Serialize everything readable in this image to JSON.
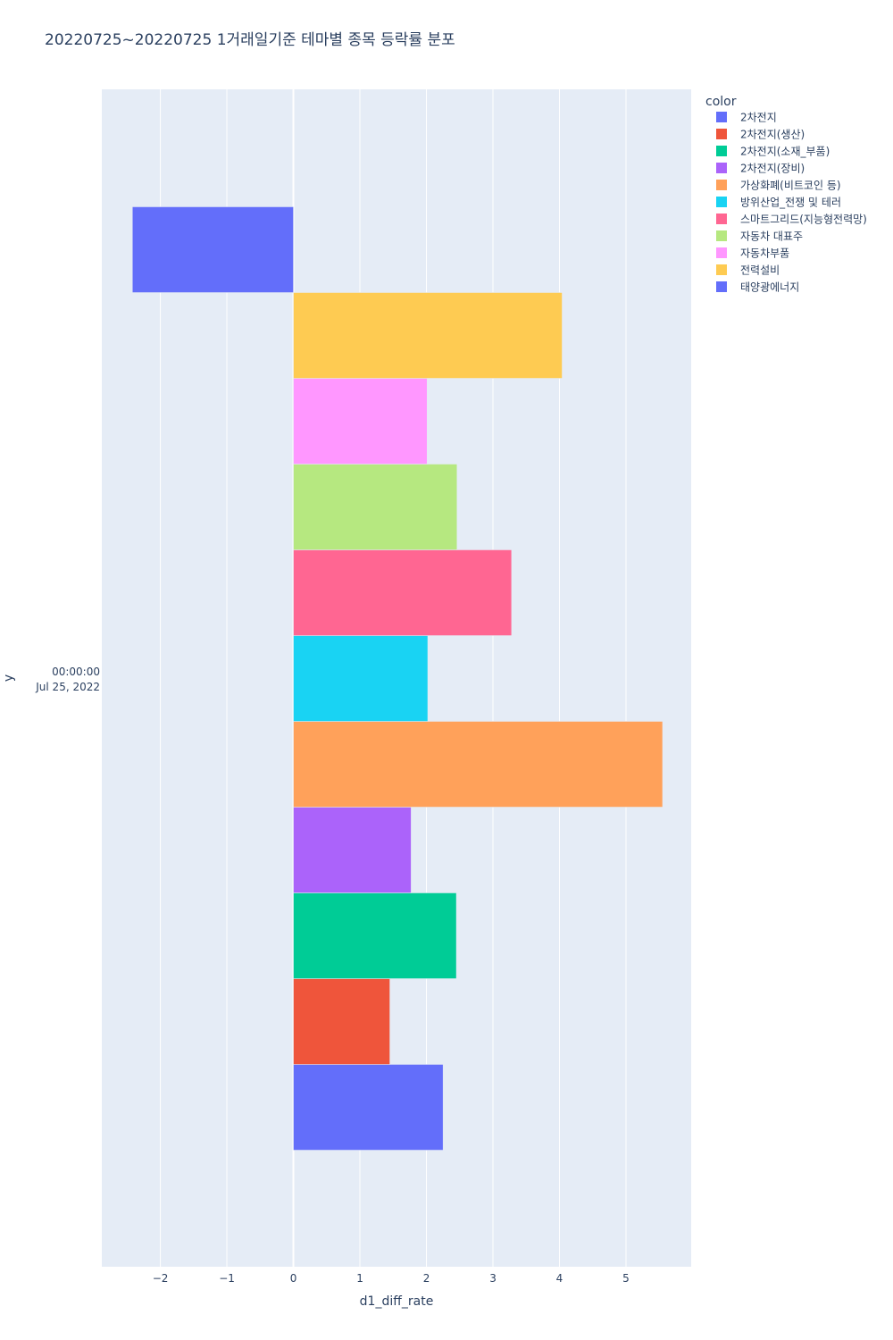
{
  "chart_data": {
    "type": "bar",
    "orientation": "horizontal",
    "barmode": "group",
    "title": "20220725~20220725 1거래일기준 테마별 종목 등락률 분포",
    "xlabel": "d1_diff_rate",
    "ylabel": "y",
    "y_category_lines": [
      "00:00:00",
      "Jul 25, 2022"
    ],
    "xlim": [
      -2.88,
      5.98
    ],
    "xticks": [
      -2,
      -1,
      0,
      1,
      2,
      3,
      4,
      5
    ],
    "xtick_labels": [
      "−2",
      "−1",
      "0",
      "1",
      "2",
      "3",
      "4",
      "5"
    ],
    "grid": true,
    "legend_title": "color",
    "legend_position": "right",
    "series": [
      {
        "name": "2차전지",
        "value": 2.25,
        "color": "#636efa"
      },
      {
        "name": "2차전지(생산)",
        "value": 1.45,
        "color": "#EF553B"
      },
      {
        "name": "2차전지(소재_부품)",
        "value": 2.45,
        "color": "#00cc96"
      },
      {
        "name": "2차전지(장비)",
        "value": 1.77,
        "color": "#ab63fa"
      },
      {
        "name": "가상화폐(비트코인 등)",
        "value": 5.55,
        "color": "#FFA15A"
      },
      {
        "name": "방위산업_전쟁 및 테러",
        "value": 2.02,
        "color": "#19d3f3"
      },
      {
        "name": "스마트그리드(지능형전력망)",
        "value": 3.28,
        "color": "#FF6692"
      },
      {
        "name": "자동차 대표주",
        "value": 2.46,
        "color": "#B6E880"
      },
      {
        "name": "자동차부품",
        "value": 2.01,
        "color": "#FF97FF"
      },
      {
        "name": "전력설비",
        "value": 4.04,
        "color": "#FECB52"
      },
      {
        "name": "태양광에너지",
        "value": -2.42,
        "color": "#636efa"
      }
    ]
  }
}
